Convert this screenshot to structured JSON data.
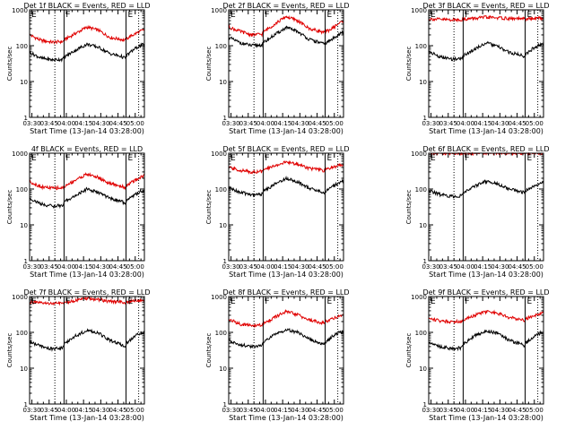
{
  "chart_data": [
    {
      "type": "line",
      "title": "Det 1f BLACK = Events, RED = LLD",
      "xlabel": "Start Time (13-Jan-14 03:28:00)",
      "ylabel": "Counts/sec",
      "yscale": "log",
      "ylim": [
        1,
        1000
      ],
      "xlim_minutes": [
        0,
        100
      ],
      "x_ticks": [
        "03:30",
        "03:45",
        "04:00",
        "04:15",
        "04:30",
        "04:45",
        "05:00"
      ],
      "y_ticks": [
        "1",
        "10",
        "100",
        "1000"
      ],
      "markers": [
        {
          "label": "E",
          "x": 0
        },
        {
          "label": "F",
          "x": 30
        },
        {
          "label": "E",
          "x": 84
        }
      ],
      "dotted_lines_x": [
        22,
        95
      ],
      "series": [
        {
          "name": "RED = LLD",
          "color": "#e00000",
          "x": [
            0,
            10,
            20,
            29,
            31,
            40,
            50,
            60,
            70,
            80,
            83,
            85,
            90,
            95,
            100
          ],
          "y": [
            200,
            140,
            125,
            130,
            150,
            220,
            330,
            270,
            170,
            150,
            140,
            160,
            200,
            240,
            280
          ]
        },
        {
          "name": "BLACK = Events",
          "color": "#000000",
          "x": [
            0,
            10,
            20,
            29,
            31,
            40,
            50,
            60,
            70,
            80,
            83,
            85,
            90,
            95,
            100
          ],
          "y": [
            65,
            45,
            40,
            42,
            50,
            75,
            110,
            90,
            60,
            50,
            45,
            55,
            75,
            95,
            110
          ]
        }
      ]
    },
    {
      "type": "line",
      "title": "Det 2f BLACK = Events, RED = LLD",
      "xlabel": "Start Time (13-Jan-14 03:28:00)",
      "ylabel": "Counts/sec",
      "yscale": "log",
      "ylim": [
        1,
        1000
      ],
      "xlim_minutes": [
        0,
        100
      ],
      "x_ticks": [
        "03:30",
        "03:45",
        "04:00",
        "04:15",
        "04:30",
        "04:45",
        "05:00"
      ],
      "y_ticks": [
        "1",
        "10",
        "100",
        "1000"
      ],
      "markers": [
        {
          "label": "E",
          "x": 0
        },
        {
          "label": "F",
          "x": 30
        },
        {
          "label": "E",
          "x": 84
        }
      ],
      "dotted_lines_x": [
        22,
        95
      ],
      "series": [
        {
          "name": "RED = LLD",
          "color": "#e00000",
          "x": [
            0,
            10,
            20,
            29,
            31,
            40,
            50,
            60,
            70,
            80,
            83,
            85,
            90,
            95,
            100
          ],
          "y": [
            330,
            250,
            200,
            210,
            250,
            400,
            650,
            500,
            300,
            250,
            230,
            250,
            300,
            400,
            500
          ]
        },
        {
          "name": "BLACK = Events",
          "color": "#000000",
          "x": [
            0,
            10,
            20,
            29,
            31,
            40,
            50,
            60,
            70,
            80,
            83,
            85,
            90,
            95,
            100
          ],
          "y": [
            170,
            120,
            100,
            105,
            125,
            200,
            320,
            250,
            150,
            120,
            110,
            120,
            150,
            200,
            240
          ]
        }
      ]
    },
    {
      "type": "line",
      "title": "Det 3f BLACK = Events, RED = LLD",
      "xlabel": "Start Time (13-Jan-14 03:28:00)",
      "ylabel": "Counts/sec",
      "yscale": "log",
      "ylim": [
        1,
        1000
      ],
      "xlim_minutes": [
        0,
        100
      ],
      "x_ticks": [
        "03:30",
        "03:45",
        "04:00",
        "04:15",
        "04:30",
        "04:45",
        "05:00"
      ],
      "y_ticks": [
        "1",
        "10",
        "100",
        "1000"
      ],
      "markers": [
        {
          "label": "E",
          "x": 0
        },
        {
          "label": "F",
          "x": 30
        },
        {
          "label": "E",
          "x": 84
        }
      ],
      "dotted_lines_x": [
        22,
        95
      ],
      "series": [
        {
          "name": "RED = LLD",
          "color": "#e00000",
          "x": [
            0,
            10,
            20,
            29,
            31,
            40,
            50,
            60,
            70,
            80,
            83,
            85,
            90,
            95,
            100
          ],
          "y": [
            560,
            540,
            530,
            535,
            550,
            580,
            620,
            600,
            570,
            560,
            555,
            560,
            575,
            590,
            600
          ]
        },
        {
          "name": "BLACK = Events",
          "color": "#000000",
          "x": [
            0,
            10,
            20,
            29,
            31,
            40,
            50,
            60,
            70,
            80,
            83,
            85,
            90,
            95,
            100
          ],
          "y": [
            70,
            48,
            42,
            44,
            55,
            80,
            120,
            95,
            65,
            55,
            50,
            60,
            80,
            100,
            115
          ]
        }
      ]
    },
    {
      "type": "line",
      "title": "4f BLACK = Events, RED = LLD",
      "xlabel": "Start Time (13-Jan-14 03:28:00)",
      "ylabel": "Counts/sec",
      "yscale": "log",
      "ylim": [
        1,
        1000
      ],
      "xlim_minutes": [
        0,
        100
      ],
      "x_ticks": [
        "03:30",
        "03:45",
        "04:00",
        "04:15",
        "04:30",
        "04:45",
        "05:00"
      ],
      "y_ticks": [
        "1",
        "10",
        "100",
        "1000"
      ],
      "markers": [
        {
          "label": "E",
          "x": 0
        },
        {
          "label": "F",
          "x": 30
        },
        {
          "label": "E",
          "x": 84
        }
      ],
      "dotted_lines_x": [
        22,
        95
      ],
      "series": [
        {
          "name": "RED = LLD",
          "color": "#e00000",
          "x": [
            0,
            10,
            20,
            29,
            31,
            40,
            50,
            60,
            70,
            80,
            83,
            85,
            90,
            95,
            100
          ],
          "y": [
            160,
            115,
            105,
            108,
            120,
            180,
            260,
            210,
            140,
            120,
            110,
            130,
            160,
            200,
            240
          ]
        },
        {
          "name": "BLACK = Events",
          "color": "#000000",
          "x": [
            0,
            10,
            20,
            29,
            31,
            40,
            50,
            60,
            70,
            80,
            83,
            85,
            90,
            95,
            100
          ],
          "y": [
            55,
            38,
            33,
            35,
            45,
            65,
            100,
            80,
            55,
            45,
            40,
            48,
            65,
            80,
            95
          ]
        }
      ]
    },
    {
      "type": "line",
      "title": "Det 5f BLACK = Events, RED = LLD",
      "xlabel": "Start Time (13-Jan-14 03:28:00)",
      "ylabel": "Counts/sec",
      "yscale": "log",
      "ylim": [
        1,
        1000
      ],
      "xlim_minutes": [
        0,
        100
      ],
      "x_ticks": [
        "03:30",
        "03:45",
        "04:00",
        "04:15",
        "04:30",
        "04:45",
        "05:00"
      ],
      "y_ticks": [
        "1",
        "10",
        "100",
        "1000"
      ],
      "markers": [
        {
          "label": "E",
          "x": 0
        },
        {
          "label": "F",
          "x": 30
        },
        {
          "label": "E",
          "x": 84
        }
      ],
      "dotted_lines_x": [
        22,
        95
      ],
      "series": [
        {
          "name": "RED = LLD",
          "color": "#e00000",
          "x": [
            0,
            10,
            20,
            29,
            31,
            40,
            50,
            60,
            70,
            80,
            83,
            85,
            90,
            95,
            100
          ],
          "y": [
            400,
            330,
            300,
            310,
            340,
            450,
            560,
            500,
            380,
            340,
            320,
            350,
            400,
            450,
            500
          ]
        },
        {
          "name": "BLACK = Events",
          "color": "#000000",
          "x": [
            0,
            10,
            20,
            29,
            31,
            40,
            50,
            60,
            70,
            80,
            83,
            85,
            90,
            95,
            100
          ],
          "y": [
            110,
            80,
            70,
            72,
            90,
            135,
            200,
            160,
            105,
            85,
            75,
            90,
            115,
            145,
            170
          ]
        }
      ]
    },
    {
      "type": "line",
      "title": "Det 6f BLACK = Events, RED = LLD",
      "xlabel": "Start Time (13-Jan-14 03:28:00)",
      "ylabel": "Counts/sec",
      "yscale": "log",
      "ylim": [
        1,
        1000
      ],
      "xlim_minutes": [
        0,
        100
      ],
      "x_ticks": [
        "03:30",
        "03:45",
        "04:00",
        "04:15",
        "04:30",
        "04:45",
        "05:00"
      ],
      "y_ticks": [
        "1",
        "10",
        "100",
        "1000"
      ],
      "markers": [
        {
          "label": "E",
          "x": 0
        },
        {
          "label": "F",
          "x": 30
        },
        {
          "label": "E",
          "x": 84
        }
      ],
      "dotted_lines_x": [
        22,
        95
      ],
      "series": [
        {
          "name": "RED = LLD",
          "color": "#e00000",
          "x": [
            0,
            10,
            20,
            29,
            31,
            40,
            50,
            60,
            70,
            80,
            83,
            85,
            90,
            95,
            100
          ],
          "y": [
            1000,
            1000,
            1000,
            1000,
            1000,
            1000,
            1000,
            1000,
            1000,
            1000,
            1000,
            1000,
            1000,
            1000,
            1000
          ]
        },
        {
          "name": "BLACK = Events",
          "color": "#000000",
          "x": [
            0,
            10,
            20,
            29,
            31,
            40,
            50,
            60,
            70,
            80,
            83,
            85,
            90,
            95,
            100
          ],
          "y": [
            90,
            70,
            62,
            65,
            80,
            120,
            165,
            140,
            100,
            85,
            80,
            90,
            110,
            130,
            150
          ]
        }
      ]
    },
    {
      "type": "line",
      "title": "Det 7f BLACK = Events, RED = LLD",
      "xlabel": "Start Time (13-Jan-14 03:28:00)",
      "ylabel": "Counts/sec",
      "yscale": "log",
      "ylim": [
        1,
        1000
      ],
      "xlim_minutes": [
        0,
        100
      ],
      "x_ticks": [
        "03:30",
        "03:45",
        "04:00",
        "04:15",
        "04:30",
        "04:45",
        "05:00"
      ],
      "y_ticks": [
        "1",
        "10",
        "100",
        "1000"
      ],
      "markers": [
        {
          "label": "E",
          "x": 0
        },
        {
          "label": "F",
          "x": 30
        },
        {
          "label": "E",
          "x": 84
        }
      ],
      "dotted_lines_x": [
        22,
        95
      ],
      "series": [
        {
          "name": "RED = LLD",
          "color": "#e00000",
          "x": [
            0,
            10,
            20,
            29,
            31,
            40,
            50,
            60,
            70,
            80,
            83,
            85,
            90,
            95,
            100
          ],
          "y": [
            700,
            650,
            640,
            645,
            680,
            780,
            880,
            820,
            730,
            700,
            690,
            700,
            740,
            780,
            800
          ]
        },
        {
          "name": "BLACK = Events",
          "color": "#000000",
          "x": [
            0,
            10,
            20,
            29,
            31,
            40,
            50,
            60,
            70,
            80,
            83,
            85,
            90,
            95,
            100
          ],
          "y": [
            55,
            40,
            35,
            37,
            50,
            80,
            115,
            95,
            60,
            45,
            40,
            50,
            70,
            90,
            100
          ]
        }
      ]
    },
    {
      "type": "line",
      "title": "Det 8f BLACK = Events, RED = LLD",
      "xlabel": "Start Time (13-Jan-14 03:28:00)",
      "ylabel": "Counts/sec",
      "yscale": "log",
      "ylim": [
        1,
        1000
      ],
      "xlim_minutes": [
        0,
        100
      ],
      "x_ticks": [
        "03:30",
        "03:45",
        "04:00",
        "04:15",
        "04:30",
        "04:45",
        "05:00"
      ],
      "y_ticks": [
        "1",
        "10",
        "100",
        "1000"
      ],
      "markers": [
        {
          "label": "E",
          "x": 0
        },
        {
          "label": "F",
          "x": 30
        },
        {
          "label": "E",
          "x": 84
        }
      ],
      "dotted_lines_x": [
        22,
        95
      ],
      "series": [
        {
          "name": "RED = LLD",
          "color": "#e00000",
          "x": [
            0,
            10,
            20,
            29,
            31,
            40,
            50,
            60,
            70,
            80,
            83,
            85,
            90,
            95,
            100
          ],
          "y": [
            230,
            170,
            155,
            160,
            180,
            260,
            380,
            310,
            220,
            190,
            180,
            200,
            240,
            280,
            310
          ]
        },
        {
          "name": "BLACK = Events",
          "color": "#000000",
          "x": [
            0,
            10,
            20,
            29,
            31,
            40,
            50,
            60,
            70,
            80,
            83,
            85,
            90,
            95,
            100
          ],
          "y": [
            60,
            45,
            40,
            42,
            55,
            85,
            120,
            100,
            65,
            50,
            45,
            55,
            75,
            95,
            105
          ]
        }
      ]
    },
    {
      "type": "line",
      "title": "Det 9f BLACK = Events, RED = LLD",
      "xlabel": "Start Time (13-Jan-14 03:28:00)",
      "ylabel": "Counts/sec",
      "yscale": "log",
      "ylim": [
        1,
        1000
      ],
      "xlim_minutes": [
        0,
        100
      ],
      "x_ticks": [
        "03:30",
        "03:45",
        "04:00",
        "04:15",
        "04:30",
        "04:45",
        "05:00"
      ],
      "y_ticks": [
        "1",
        "10",
        "100",
        "1000"
      ],
      "markers": [
        {
          "label": "E",
          "x": 0
        },
        {
          "label": "F",
          "x": 30
        },
        {
          "label": "E",
          "x": 84
        }
      ],
      "dotted_lines_x": [
        22,
        95
      ],
      "series": [
        {
          "name": "RED = LLD",
          "color": "#e00000",
          "x": [
            0,
            10,
            20,
            29,
            31,
            40,
            50,
            60,
            70,
            80,
            83,
            85,
            90,
            95,
            100
          ],
          "y": [
            250,
            210,
            200,
            205,
            230,
            300,
            380,
            340,
            260,
            230,
            220,
            240,
            280,
            320,
            350
          ]
        },
        {
          "name": "BLACK = Events",
          "color": "#000000",
          "x": [
            0,
            10,
            20,
            29,
            31,
            40,
            50,
            60,
            70,
            80,
            83,
            85,
            90,
            95,
            100
          ],
          "y": [
            55,
            40,
            35,
            37,
            50,
            80,
            110,
            95,
            60,
            48,
            42,
            52,
            70,
            90,
            100
          ]
        }
      ]
    }
  ]
}
